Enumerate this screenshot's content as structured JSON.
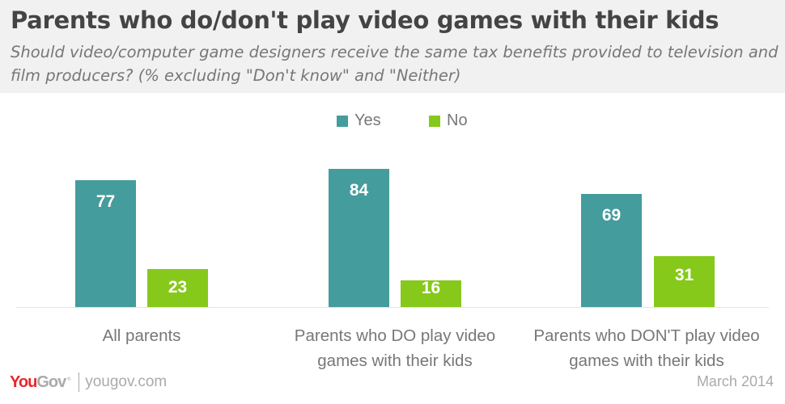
{
  "header": {
    "title": "Parents who do/don't play video games with their kids",
    "subtitle": "Should video/computer game designers receive the same tax benefits provided to television and film producers? (% excluding \"Don't know\" and \"Neither)"
  },
  "legend": {
    "items": [
      {
        "label": "Yes",
        "color": "#459c9c"
      },
      {
        "label": "No",
        "color": "#86c91b"
      }
    ]
  },
  "groups": [
    {
      "label": "All parents",
      "yes": "77",
      "no": "23"
    },
    {
      "label": "Parents who DO play video games with their kids",
      "yes": "84",
      "no": "16"
    },
    {
      "label": "Parents who DON'T play video games with their kids",
      "yes": "69",
      "no": "31"
    }
  ],
  "footer": {
    "logo_you": "You",
    "logo_gov": "Gov",
    "logo_reg": "®",
    "url": "yougov.com",
    "date": "March 2014"
  },
  "chart_data": {
    "type": "bar",
    "title": "Parents who do/don't play video games with their kids",
    "subtitle": "Should video/computer game designers receive the same tax benefits provided to television and film producers? (% excluding \"Don't know\" and \"Neither)",
    "categories": [
      "All parents",
      "Parents who DO play video games with their kids",
      "Parents who DON'T play video games with their kids"
    ],
    "series": [
      {
        "name": "Yes",
        "color": "#459c9c",
        "values": [
          77,
          84,
          69
        ]
      },
      {
        "name": "No",
        "color": "#86c91b",
        "values": [
          23,
          16,
          31
        ]
      }
    ],
    "xlabel": "",
    "ylabel": "",
    "ylim": [
      0,
      100
    ],
    "grid": false,
    "legend_position": "top",
    "data_labels": true,
    "source": "YouGov | yougov.com",
    "date": "March 2014"
  }
}
